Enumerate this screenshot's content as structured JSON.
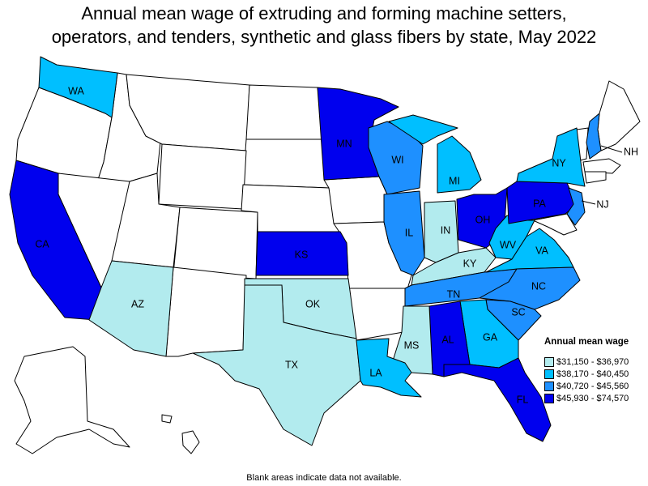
{
  "title_lines": [
    "Annual mean wage of extruding and forming machine setters,",
    "operators, and tenders, synthetic and glass fibers by state, May 2022"
  ],
  "legend": {
    "title": "Annual mean wage",
    "items": [
      {
        "label": "$31,150 - $36,970",
        "color": "#b2ebee"
      },
      {
        "label": "$38,170 - $40,450",
        "color": "#00bfff"
      },
      {
        "label": "$40,720 - $45,560",
        "color": "#1e90ff"
      },
      {
        "label": "$45,930 - $74,570",
        "color": "#0000ee"
      }
    ]
  },
  "footnote": "Blank areas indicate data not available.",
  "colors": {
    "no_data": "#ffffff",
    "border": "#000000"
  },
  "state_labels": [
    "WA",
    "MN",
    "WI",
    "MI",
    "NY",
    "NH",
    "NJ",
    "PA",
    "OH",
    "IN",
    "IL",
    "KS",
    "CA",
    "AZ",
    "OK",
    "TX",
    "KY",
    "WV",
    "VA",
    "TN",
    "NC",
    "SC",
    "GA",
    "AL",
    "MS",
    "LA",
    "FL"
  ],
  "chart_data": {
    "type": "choropleth",
    "legend_placement": "right",
    "bins": [
      {
        "range": "$31,150 - $36,970",
        "states": [
          "AZ",
          "TX",
          "OK",
          "IN",
          "KY",
          "MS"
        ]
      },
      {
        "range": "$38,170 - $40,450",
        "states": [
          "WA",
          "MI",
          "NY",
          "WV",
          "VA",
          "GA",
          "LA"
        ]
      },
      {
        "range": "$40,720 - $45,560",
        "states": [
          "WI",
          "IL",
          "NH",
          "NJ",
          "TN",
          "NC",
          "SC"
        ]
      },
      {
        "range": "$45,930 - $74,570",
        "states": [
          "CA",
          "MN",
          "KS",
          "OH",
          "PA",
          "AL",
          "FL"
        ]
      }
    ]
  }
}
